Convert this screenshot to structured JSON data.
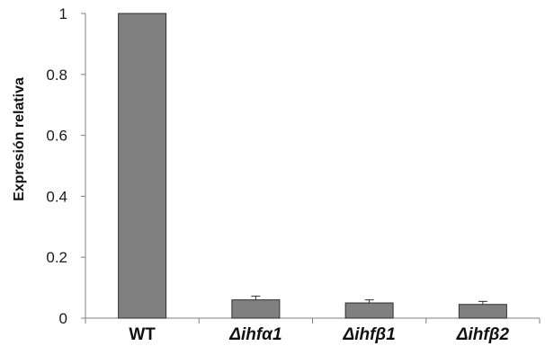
{
  "chart_data": {
    "type": "bar",
    "title": "",
    "xlabel": "",
    "ylabel": "Expresión relativa",
    "ylim": [
      0,
      1
    ],
    "yticks": [
      "0",
      "0.2",
      "0.4",
      "0.6",
      "0.8",
      "1"
    ],
    "ytick_values": [
      0,
      0.2,
      0.4,
      0.6,
      0.8,
      1
    ],
    "categories": [
      "WT",
      "Δihfα1",
      "Δihfβ1",
      "Δihfβ2"
    ],
    "values": [
      1.0,
      0.06,
      0.05,
      0.045
    ],
    "errors": [
      0,
      0.012,
      0.01,
      0.01
    ],
    "grid": false,
    "legend": "none",
    "colors": {
      "bar_fill": "#808080",
      "bar_stroke": "#2e2e2e",
      "axis": "#808080"
    }
  }
}
